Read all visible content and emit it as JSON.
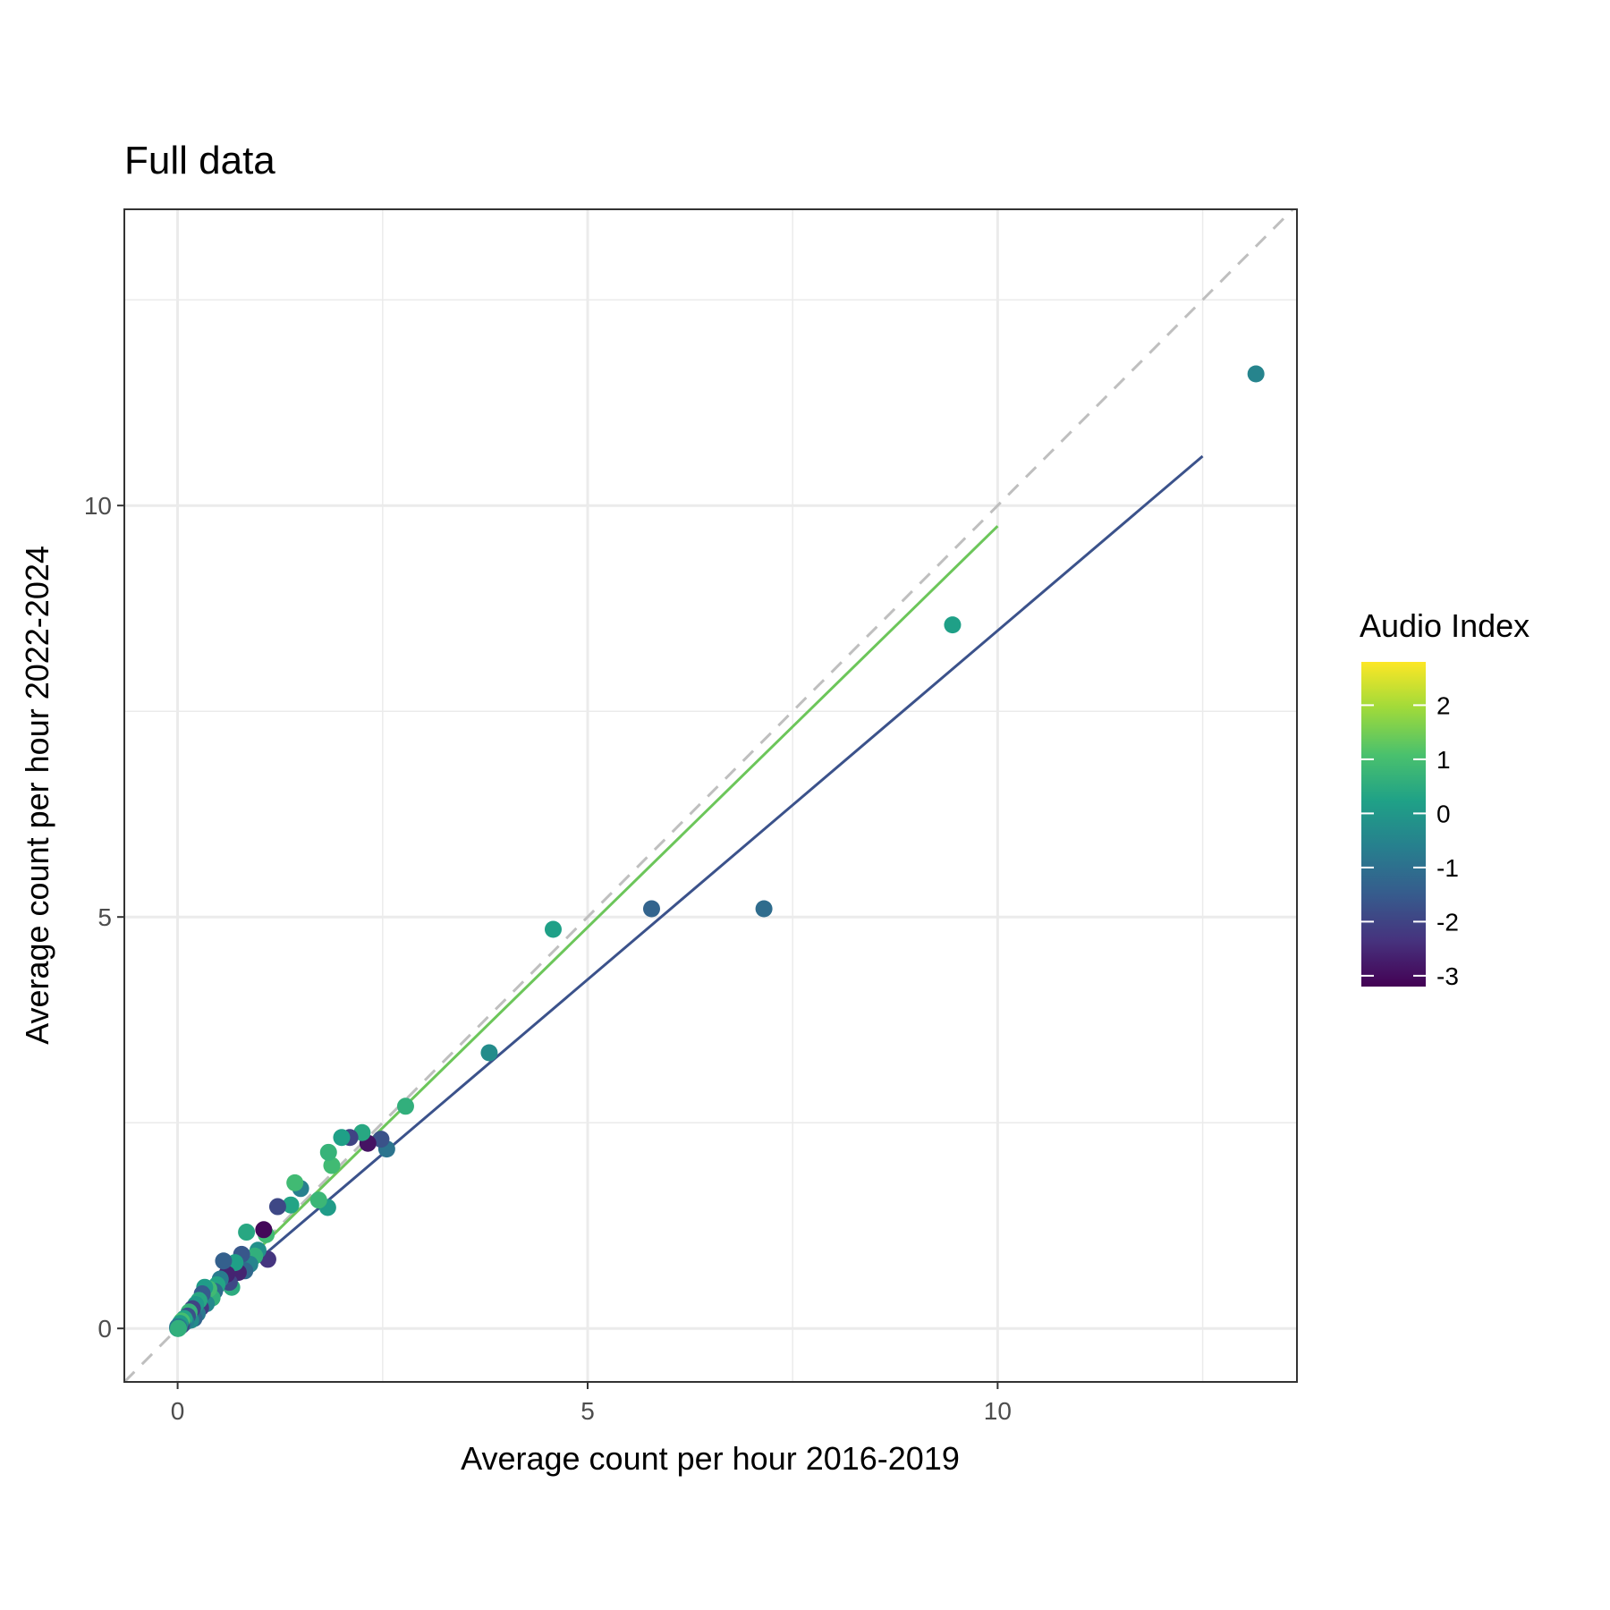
{
  "chart_data": {
    "type": "scatter",
    "title": "Full data",
    "xlabel": "Average count per hour 2016-2019",
    "ylabel": "Average count per hour 2022-2024",
    "xlim": [
      -0.65,
      13.65
    ],
    "ylim": [
      -0.65,
      13.6
    ],
    "x_ticks": [
      0,
      5,
      10
    ],
    "y_ticks": [
      0,
      5,
      10
    ],
    "x_tick_labels": [
      "0",
      "5",
      "10"
    ],
    "y_tick_labels": [
      "0",
      "5",
      "10"
    ],
    "grid": true,
    "legend": {
      "title": "Audio Index",
      "position": "right",
      "range": [
        -3.2,
        2.8
      ],
      "ticks": [
        2,
        1,
        0,
        -1,
        -2,
        -3
      ],
      "tick_labels": [
        "2",
        "1",
        "0",
        "-1",
        "-2",
        "-3"
      ],
      "colors": [
        "#440154",
        "#46337e",
        "#365c8d",
        "#277f8e",
        "#1fa187",
        "#4ac16d",
        "#9fda3a",
        "#fde725"
      ]
    },
    "reference_line": {
      "slope": 1,
      "intercept": 0,
      "style": "dashed",
      "color": "#bfbfbf"
    },
    "fit_lines": [
      {
        "x": [
          0,
          10
        ],
        "y": [
          0,
          9.75
        ],
        "color": "#6cc65a"
      },
      {
        "x": [
          0,
          12.5
        ],
        "y": [
          0,
          10.6
        ],
        "color": "#3b528b"
      }
    ],
    "points": [
      {
        "x": 13.15,
        "y": 11.6,
        "index": -0.5
      },
      {
        "x": 9.45,
        "y": 8.55,
        "index": 0.2
      },
      {
        "x": 7.15,
        "y": 5.1,
        "index": -1.1
      },
      {
        "x": 5.78,
        "y": 5.1,
        "index": -1.3
      },
      {
        "x": 4.58,
        "y": 4.85,
        "index": 0.2
      },
      {
        "x": 3.8,
        "y": 3.35,
        "index": -0.3
      },
      {
        "x": 2.78,
        "y": 2.7,
        "index": 0.6
      },
      {
        "x": 2.55,
        "y": 2.18,
        "index": -0.9
      },
      {
        "x": 2.48,
        "y": 2.3,
        "index": -1.7
      },
      {
        "x": 2.32,
        "y": 2.25,
        "index": -2.9
      },
      {
        "x": 2.25,
        "y": 2.38,
        "index": 0.4
      },
      {
        "x": 2.1,
        "y": 2.32,
        "index": -2.0
      },
      {
        "x": 2.0,
        "y": 2.32,
        "index": 0.2
      },
      {
        "x": 1.88,
        "y": 1.98,
        "index": 0.9
      },
      {
        "x": 1.84,
        "y": 2.14,
        "index": 0.7
      },
      {
        "x": 1.83,
        "y": 1.47,
        "index": 0.1
      },
      {
        "x": 1.72,
        "y": 1.56,
        "index": 0.8
      },
      {
        "x": 1.5,
        "y": 1.7,
        "index": -0.6
      },
      {
        "x": 1.43,
        "y": 1.77,
        "index": 0.9
      },
      {
        "x": 1.38,
        "y": 1.5,
        "index": 0.3
      },
      {
        "x": 1.22,
        "y": 1.48,
        "index": -1.9
      },
      {
        "x": 1.1,
        "y": 0.84,
        "index": -2.3
      },
      {
        "x": 1.08,
        "y": 1.14,
        "index": 0.9
      },
      {
        "x": 1.05,
        "y": 1.2,
        "index": -3.1
      },
      {
        "x": 0.98,
        "y": 0.95,
        "index": -0.2
      },
      {
        "x": 0.94,
        "y": 0.88,
        "index": 0.6
      },
      {
        "x": 0.88,
        "y": 0.78,
        "index": -0.5
      },
      {
        "x": 0.84,
        "y": 1.17,
        "index": 0.4
      },
      {
        "x": 0.82,
        "y": 0.7,
        "index": -1.2
      },
      {
        "x": 0.78,
        "y": 0.9,
        "index": -1.6
      },
      {
        "x": 0.74,
        "y": 0.68,
        "index": -2.6
      },
      {
        "x": 0.7,
        "y": 0.8,
        "index": 0.2
      },
      {
        "x": 0.66,
        "y": 0.5,
        "index": 0.5
      },
      {
        "x": 0.63,
        "y": 0.56,
        "index": -1.9
      },
      {
        "x": 0.6,
        "y": 0.66,
        "index": -2.6
      },
      {
        "x": 0.56,
        "y": 0.82,
        "index": -1.4
      },
      {
        "x": 0.52,
        "y": 0.6,
        "index": -0.7
      },
      {
        "x": 0.48,
        "y": 0.53,
        "index": 0.3
      },
      {
        "x": 0.45,
        "y": 0.45,
        "index": -1.1
      },
      {
        "x": 0.42,
        "y": 0.37,
        "index": 0.6
      },
      {
        "x": 0.38,
        "y": 0.48,
        "index": 0.9
      },
      {
        "x": 0.35,
        "y": 0.3,
        "index": -0.4
      },
      {
        "x": 0.33,
        "y": 0.5,
        "index": 0.1
      },
      {
        "x": 0.3,
        "y": 0.42,
        "index": -1.5
      },
      {
        "x": 0.28,
        "y": 0.25,
        "index": -2.2
      },
      {
        "x": 0.26,
        "y": 0.34,
        "index": 0.4
      },
      {
        "x": 0.24,
        "y": 0.18,
        "index": -0.8
      },
      {
        "x": 0.22,
        "y": 0.29,
        "index": 0.0
      },
      {
        "x": 0.2,
        "y": 0.12,
        "index": -1.3
      },
      {
        "x": 0.18,
        "y": 0.24,
        "index": -2.0
      },
      {
        "x": 0.16,
        "y": 0.1,
        "index": -0.3
      },
      {
        "x": 0.14,
        "y": 0.2,
        "index": 0.7
      },
      {
        "x": 0.12,
        "y": 0.15,
        "index": -1.7
      },
      {
        "x": 0.1,
        "y": 0.08,
        "index": -0.6
      },
      {
        "x": 0.08,
        "y": 0.12,
        "index": 0.3
      },
      {
        "x": 0.06,
        "y": 0.05,
        "index": -1.0
      },
      {
        "x": 0.05,
        "y": 0.09,
        "index": 1.0
      },
      {
        "x": 0.04,
        "y": 0.03,
        "index": -2.1
      },
      {
        "x": 0.03,
        "y": 0.06,
        "index": 0.1
      },
      {
        "x": 0.02,
        "y": 0.02,
        "index": -0.5
      },
      {
        "x": 0.01,
        "y": 0.01,
        "index": -1.4
      },
      {
        "x": 0.0,
        "y": 0.0,
        "index": 0.2
      },
      {
        "x": 0.0,
        "y": 0.02,
        "index": -0.8
      },
      {
        "x": 0.01,
        "y": 0.0,
        "index": 0.6
      }
    ]
  }
}
